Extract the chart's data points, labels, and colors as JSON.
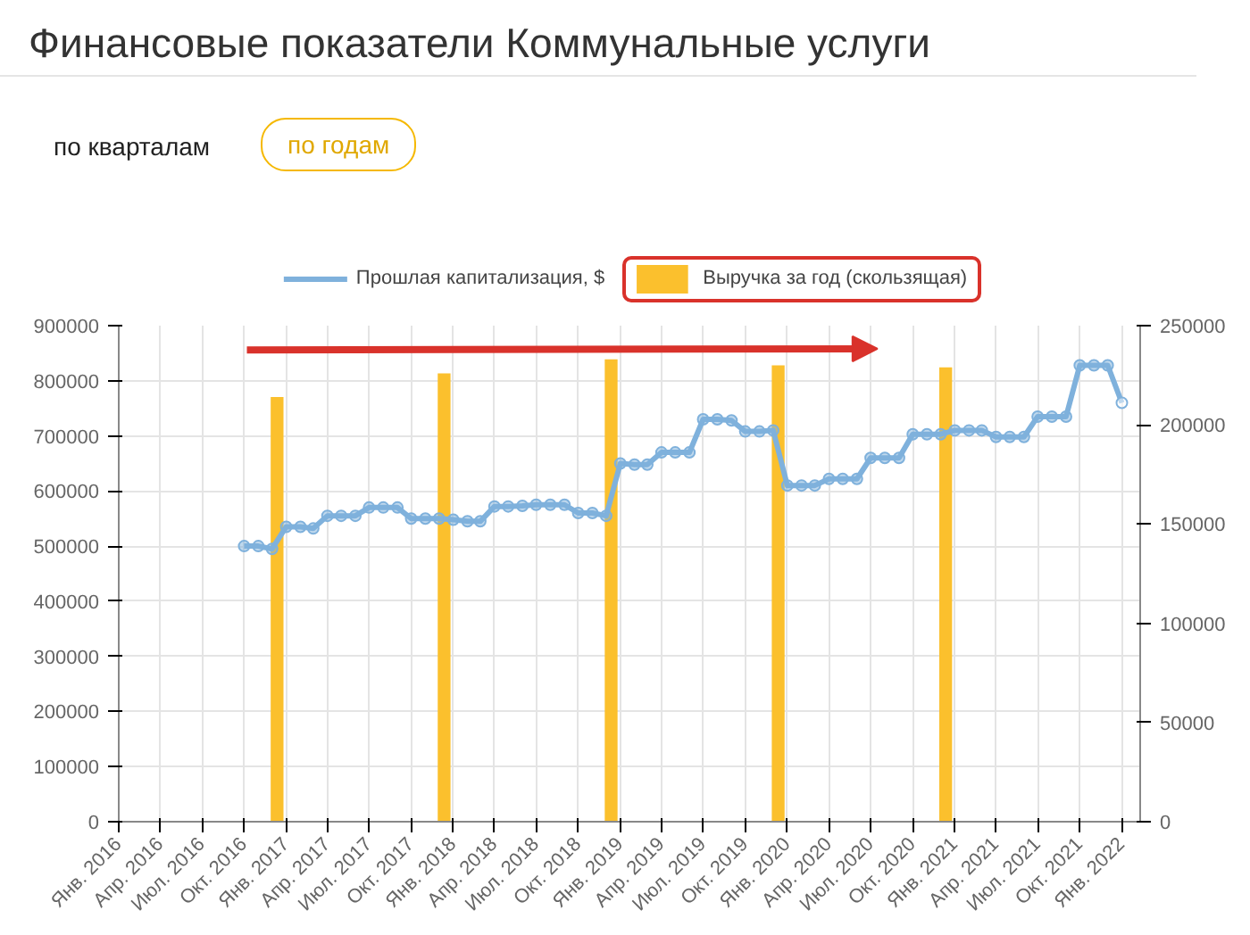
{
  "chart_data": {
    "type": "line",
    "title": "Финансовые показатели Коммунальные услуги",
    "annotations": [
      "по кварталам",
      "по годам"
    ],
    "series": [
      {
        "name": "Прошлая капитализация, $",
        "color": "#7fb1dc",
        "marker": "circle",
        "x": [
          "2016-10",
          "2016-11",
          "2016-12",
          "2017-01",
          "2017-02",
          "2017-03",
          "2017-04",
          "2017-05",
          "2017-06",
          "2017-07",
          "2017-08",
          "2017-09",
          "2017-10",
          "2017-11",
          "2017-12",
          "2018-01",
          "2018-02",
          "2018-03",
          "2018-04",
          "2018-05",
          "2018-06",
          "2018-07",
          "2018-08",
          "2018-09",
          "2018-10",
          "2018-11",
          "2018-12",
          "2019-01",
          "2019-02",
          "2019-03",
          "2019-04",
          "2019-05",
          "2019-06",
          "2019-07",
          "2019-08",
          "2019-09",
          "2019-10",
          "2019-11",
          "2019-12",
          "2020-01",
          "2020-02",
          "2020-03",
          "2020-04",
          "2020-05",
          "2020-06",
          "2020-07",
          "2020-08",
          "2020-09",
          "2020-10",
          "2020-11",
          "2020-12",
          "2021-01",
          "2021-02",
          "2021-03",
          "2021-04",
          "2021-05",
          "2021-06",
          "2021-07",
          "2021-08",
          "2021-09",
          "2021-10",
          "2021-11",
          "2021-12",
          "2022-01"
        ],
        "values": [
          500000,
          500000,
          495000,
          535000,
          535000,
          532000,
          555000,
          555000,
          555000,
          570000,
          570000,
          570000,
          550000,
          550000,
          550000,
          548000,
          545000,
          545000,
          572000,
          572000,
          573000,
          575000,
          575000,
          575000,
          560000,
          560000,
          555000,
          650000,
          648000,
          648000,
          670000,
          670000,
          670000,
          730000,
          730000,
          728000,
          708000,
          708000,
          710000,
          610000,
          610000,
          610000,
          622000,
          622000,
          622000,
          660000,
          660000,
          660000,
          703000,
          703000,
          703000,
          710000,
          710000,
          710000,
          698000,
          698000,
          698000,
          735000,
          735000,
          735000,
          828000,
          828000,
          828000,
          760000
        ]
      },
      {
        "name": "Выручка за год (скользящая)",
        "type": "bar",
        "axis": "y2",
        "color": "#fbc02d",
        "x": [
          "2016-12-12",
          "2017-12-12",
          "2018-12-12",
          "2019-12-12",
          "2020-12-12"
        ],
        "values": [
          214000,
          226000,
          233000,
          230000,
          229000
        ]
      }
    ],
    "xlim": [
      "2016-01-01",
      "2022-02-10"
    ],
    "xticks": [
      {
        "value": "2016-01",
        "label": "Янв. 2016"
      },
      {
        "value": "2016-04",
        "label": "Апр. 2016"
      },
      {
        "value": "2016-07",
        "label": "Июл. 2016"
      },
      {
        "value": "2016-10",
        "label": "Окт. 2016"
      },
      {
        "value": "2017-01",
        "label": "Янв. 2017"
      },
      {
        "value": "2017-04",
        "label": "Апр. 2017"
      },
      {
        "value": "2017-07",
        "label": "Июл. 2017"
      },
      {
        "value": "2017-10",
        "label": "Окт. 2017"
      },
      {
        "value": "2018-01",
        "label": "Янв. 2018"
      },
      {
        "value": "2018-04",
        "label": "Апр. 2018"
      },
      {
        "value": "2018-07",
        "label": "Июл. 2018"
      },
      {
        "value": "2018-10",
        "label": "Окт. 2018"
      },
      {
        "value": "2019-01",
        "label": "Янв. 2019"
      },
      {
        "value": "2019-04",
        "label": "Апр. 2019"
      },
      {
        "value": "2019-07",
        "label": "Июл. 2019"
      },
      {
        "value": "2019-10",
        "label": "Окт. 2019"
      },
      {
        "value": "2020-01",
        "label": "Янв. 2020"
      },
      {
        "value": "2020-04",
        "label": "Апр. 2020"
      },
      {
        "value": "2020-07",
        "label": "Июл. 2020"
      },
      {
        "value": "2020-10",
        "label": "Окт. 2020"
      },
      {
        "value": "2021-01",
        "label": "Янв. 2021"
      },
      {
        "value": "2021-04",
        "label": "Апр. 2021"
      },
      {
        "value": "2021-07",
        "label": "Июл. 2021"
      },
      {
        "value": "2021-10",
        "label": "Окт. 2021"
      },
      {
        "value": "2022-01",
        "label": "Янв. 2022"
      }
    ],
    "ylim": [
      0,
      900000
    ],
    "yticks": [
      0,
      100000,
      200000,
      300000,
      400000,
      500000,
      600000,
      700000,
      800000,
      900000
    ],
    "y2lim": [
      0,
      250000
    ],
    "y2ticks": [
      0,
      50000,
      100000,
      150000,
      200000,
      250000
    ],
    "grid": true,
    "legend": "top"
  }
}
